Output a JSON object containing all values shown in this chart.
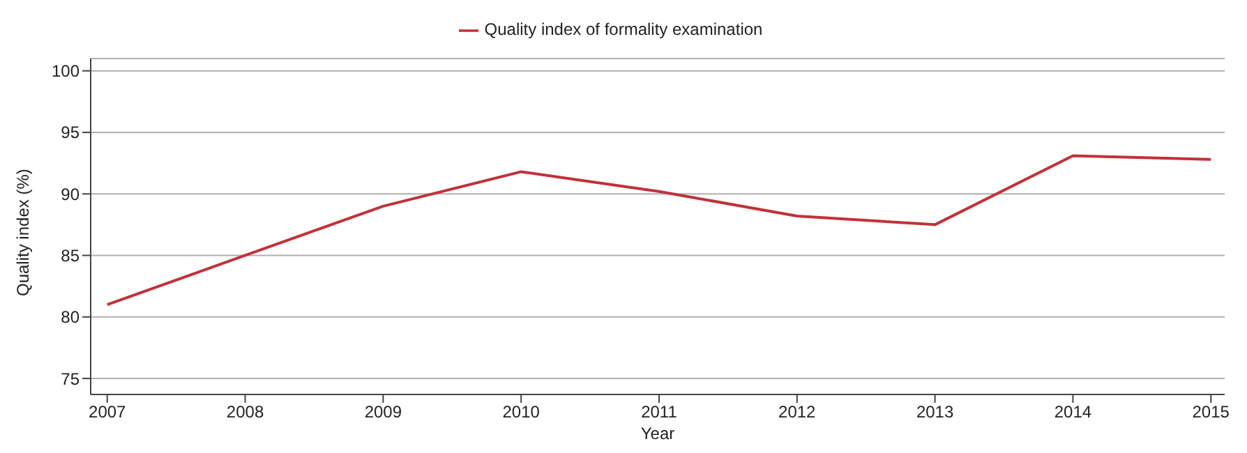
{
  "chart_data": {
    "type": "line",
    "xlabel": "Year",
    "ylabel": "Quality index (%)",
    "x": [
      2007,
      2008,
      2009,
      2010,
      2011,
      2012,
      2013,
      2014,
      2015
    ],
    "series": [
      {
        "name": "Quality index of formality examination",
        "color": "#c0323a",
        "values": [
          81.0,
          85.0,
          89.0,
          91.8,
          90.2,
          88.2,
          87.5,
          93.1,
          92.8
        ]
      }
    ],
    "xlim": [
      2006.88,
      2015.1
    ],
    "xticks": [
      2007,
      2008,
      2009,
      2010,
      2011,
      2012,
      2013,
      2014,
      2015
    ],
    "ylim": [
      73.7,
      101
    ],
    "yticks": [
      75,
      80,
      85,
      90,
      95,
      100
    ],
    "grid": "y",
    "legend": "top",
    "marker": "none",
    "line_style": "solid"
  }
}
